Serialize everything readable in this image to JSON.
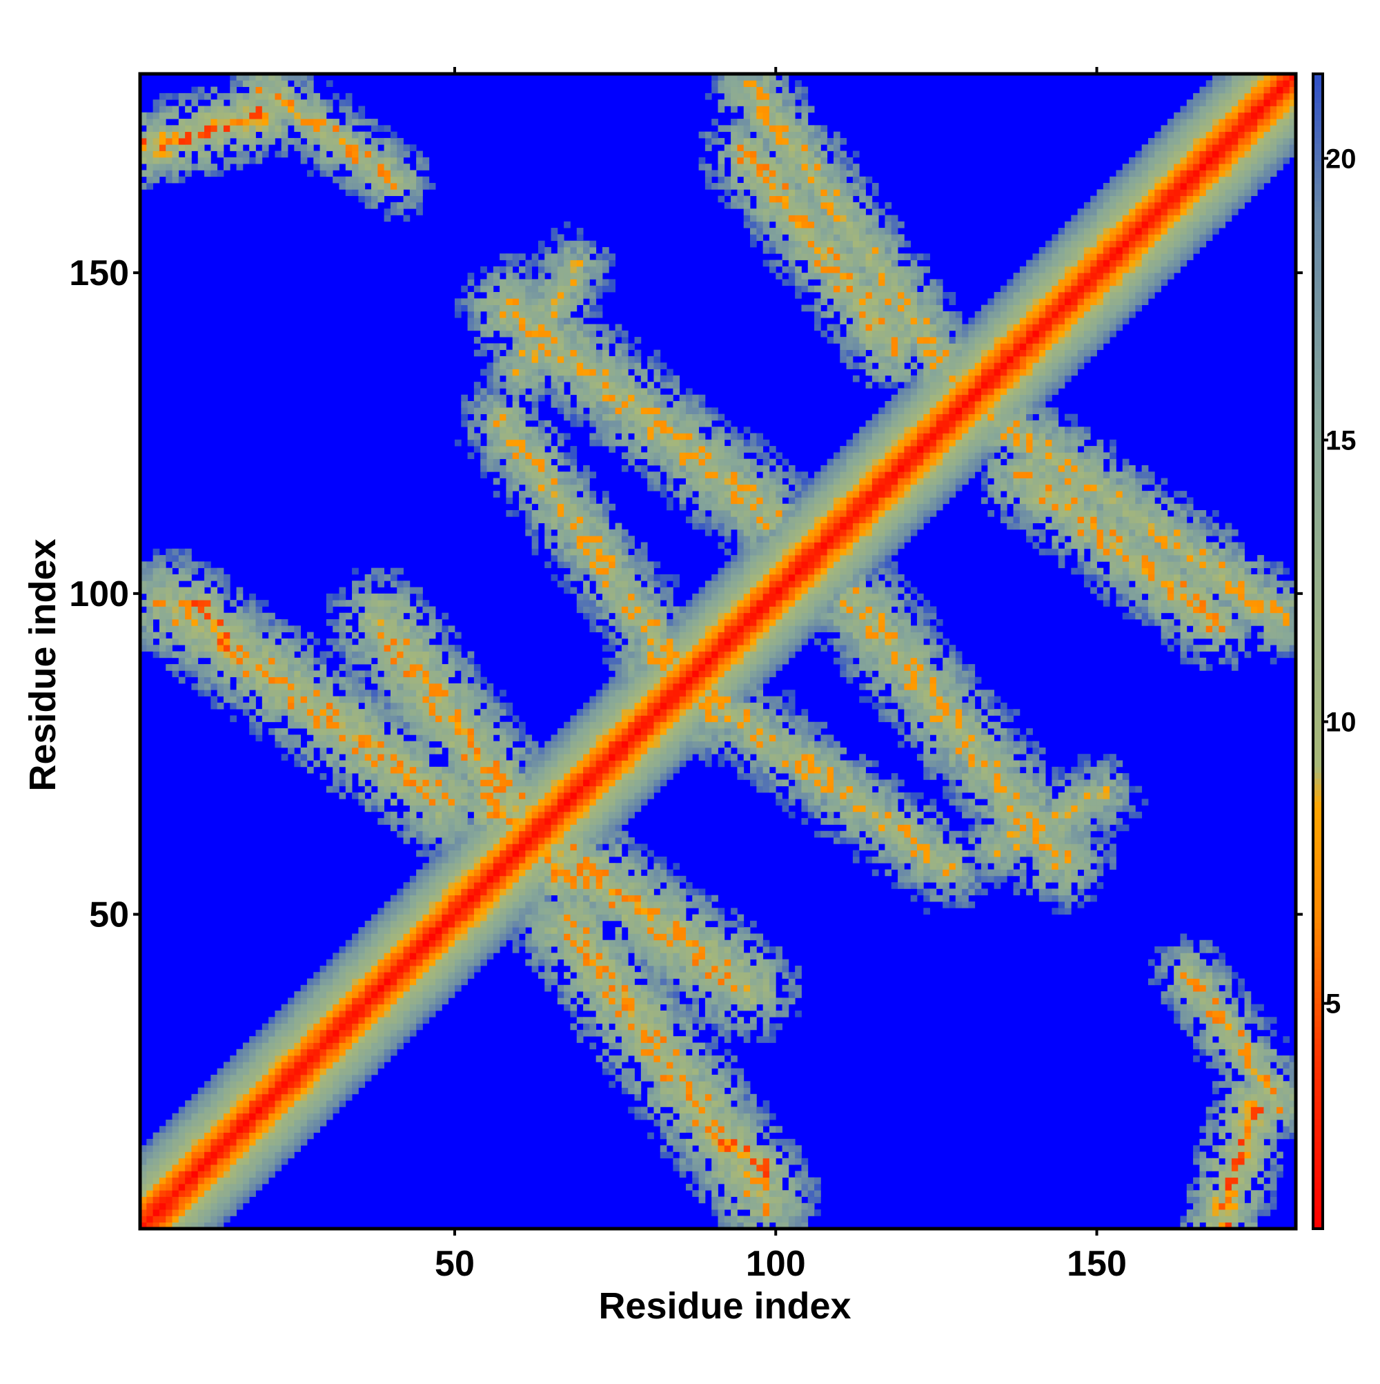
{
  "chart_data": {
    "type": "heatmap",
    "title": "",
    "xlabel": "Residue index",
    "ylabel": "Residue index",
    "n_residues": 180,
    "xlim": [
      1,
      180
    ],
    "ylim": [
      1,
      180
    ],
    "x_ticks": [
      50,
      100,
      150
    ],
    "y_ticks": [
      50,
      100,
      150
    ],
    "colorbar": {
      "ticks": [
        5,
        10,
        15,
        20
      ],
      "range": [
        1,
        21.5
      ],
      "color_stops": [
        {
          "value": 1,
          "color": "#ff0000"
        },
        {
          "value": 4,
          "color": "#ff3300"
        },
        {
          "value": 6.5,
          "color": "#ff8800"
        },
        {
          "value": 8.5,
          "color": "#ffa500"
        },
        {
          "value": 9.2,
          "color": "#a8b878"
        },
        {
          "value": 12,
          "color": "#98b088"
        },
        {
          "value": 15,
          "color": "#88a898"
        },
        {
          "value": 19,
          "color": "#6888a8"
        },
        {
          "value": 21.5,
          "color": "#3050c8"
        }
      ],
      "out_of_range_color": "#0000ff"
    },
    "cutoff": 21.5,
    "grid": false,
    "legend": "colorbar-right",
    "contact_bands": [
      {
        "from": [
          1,
          169
        ],
        "to": [
          20,
          174
        ],
        "width": 4,
        "center_value": 7
      },
      {
        "from": [
          5,
          98
        ],
        "to": [
          48,
          67
        ],
        "width": 6,
        "center_value": 9
      },
      {
        "from": [
          55,
          67
        ],
        "to": [
          95,
          38
        ],
        "width": 6,
        "center_value": 9
      },
      {
        "from": [
          58,
          144
        ],
        "to": [
          98,
          112
        ],
        "width": 6,
        "center_value": 10
      },
      {
        "from": [
          95,
          168
        ],
        "to": [
          118,
          138
        ],
        "width": 5,
        "center_value": 9
      },
      {
        "from": [
          80,
          90
        ],
        "to": [
          126,
          57
        ],
        "width": 5,
        "center_value": 10
      },
      {
        "from": [
          132,
          128
        ],
        "to": [
          178,
          96
        ],
        "width": 5,
        "center_value": 10
      },
      {
        "from": [
          164,
          40
        ],
        "to": [
          178,
          20
        ],
        "width": 4,
        "center_value": 9
      },
      {
        "from": [
          134,
          60
        ],
        "to": [
          150,
          68
        ],
        "width": 5,
        "center_value": 11
      },
      {
        "from": [
          90,
          15
        ],
        "to": [
          98,
          10
        ],
        "width": 3,
        "center_value": 7
      }
    ]
  }
}
